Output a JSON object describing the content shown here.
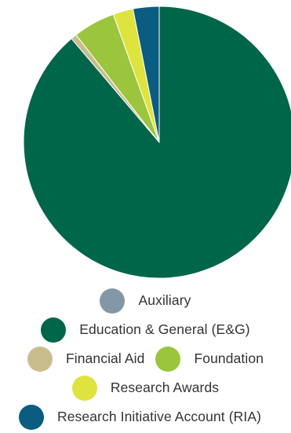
{
  "chart_data": {
    "type": "pie",
    "series": [
      {
        "name": "Auxiliary",
        "value": 0.0,
        "color": "#8497a6"
      },
      {
        "name": "Education & General (E&G)",
        "value": 88.8,
        "color": "#00664a"
      },
      {
        "name": "Financial Aid",
        "value": 0.7,
        "color": "#c9bd8e"
      },
      {
        "name": "Foundation",
        "value": 5.0,
        "color": "#9bc53d"
      },
      {
        "name": "Research Awards",
        "value": 2.4,
        "color": "#dfe33d"
      },
      {
        "name": "Research Initiative Account (RIA)",
        "value": 3.1,
        "color": "#0a5c80"
      }
    ],
    "legend": {
      "placement": "bottom",
      "rows": [
        [
          0
        ],
        [
          1
        ],
        [
          2,
          3
        ],
        [
          4
        ],
        [
          5
        ]
      ]
    }
  }
}
